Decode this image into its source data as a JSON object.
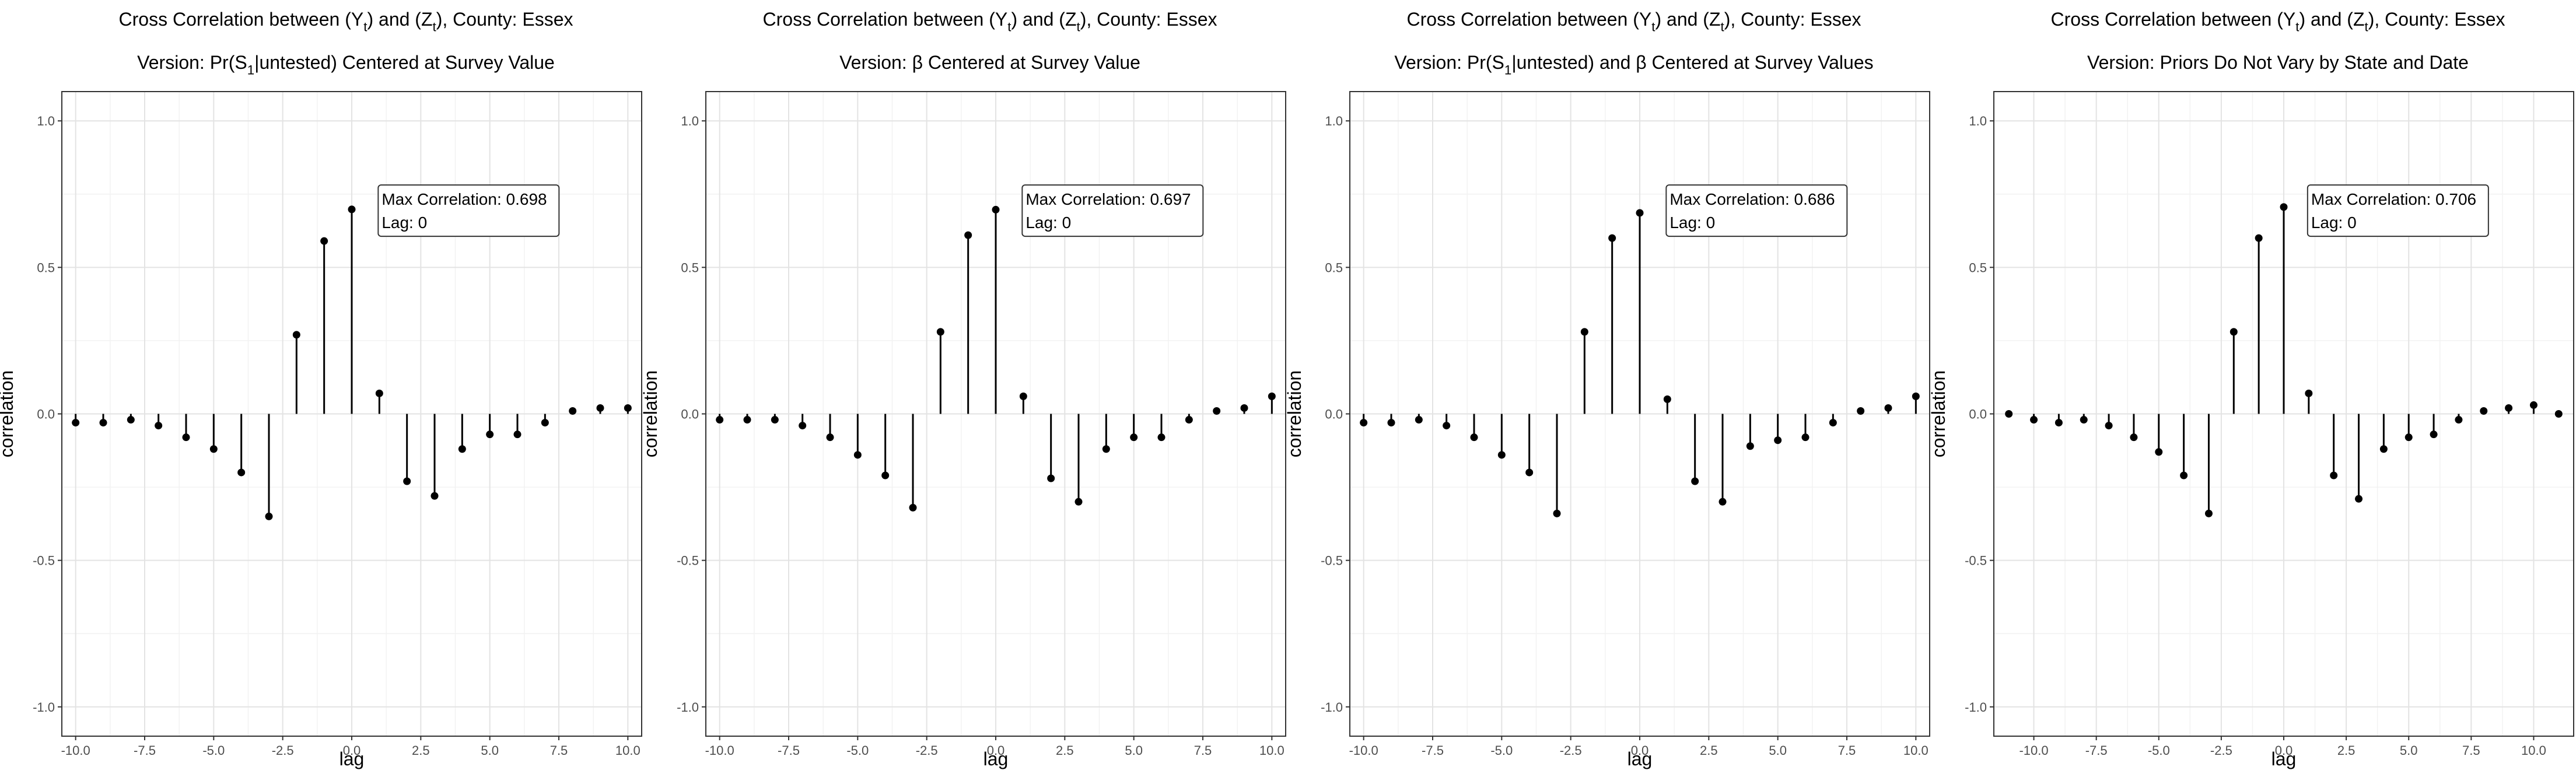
{
  "chart_data": [
    {
      "type": "stem",
      "title_parts": [
        "Cross Correlation between (Y",
        "t",
        ") and (Z",
        "t",
        "), County: Essex"
      ],
      "subtitle_parts": [
        "Version: Pr(S",
        "1",
        "|untested) Centered at Survey Value"
      ],
      "xlabel": "lag",
      "ylabel": "correlation",
      "xlim": [
        -10.5,
        10.5
      ],
      "ylim": [
        -1.1,
        1.1
      ],
      "x_ticks": [
        -10,
        -7.5,
        -5,
        -2.5,
        0,
        2.5,
        5,
        7.5,
        10
      ],
      "x_tick_labels": [
        "-10.0",
        "-7.5",
        "-5.0",
        "-2.5",
        "0.0",
        "2.5",
        "5.0",
        "7.5",
        "10.0"
      ],
      "y_ticks": [
        -1,
        -0.5,
        0,
        0.5,
        1
      ],
      "y_tick_labels": [
        "-1.0",
        "-0.5",
        "0.0",
        "0.5",
        "1.0"
      ],
      "grid": true,
      "x": [
        -10,
        -9,
        -8,
        -7,
        -6,
        -5,
        -4,
        -3,
        -2,
        -1,
        0,
        1,
        2,
        3,
        4,
        5,
        6,
        7,
        8,
        9,
        10
      ],
      "y": [
        -0.03,
        -0.03,
        -0.02,
        -0.04,
        -0.08,
        -0.12,
        -0.2,
        -0.35,
        0.27,
        0.59,
        0.698,
        0.07,
        -0.23,
        -0.28,
        -0.12,
        -0.07,
        -0.07,
        -0.03,
        0.01,
        0.02,
        0.02
      ],
      "annotation": {
        "lines": [
          "Max Correlation: 0.698",
          "Lag: 0"
        ],
        "x": 1,
        "y": 0.63
      }
    },
    {
      "type": "stem",
      "title_parts": [
        "Cross Correlation between (Y",
        "t",
        ") and (Z",
        "t",
        "), County: Essex"
      ],
      "subtitle_parts": [
        "Version: β Centered at Survey Value"
      ],
      "xlabel": "lag",
      "ylabel": "correlation",
      "xlim": [
        -10.5,
        10.5
      ],
      "ylim": [
        -1.1,
        1.1
      ],
      "x_ticks": [
        -10,
        -7.5,
        -5,
        -2.5,
        0,
        2.5,
        5,
        7.5,
        10
      ],
      "x_tick_labels": [
        "-10.0",
        "-7.5",
        "-5.0",
        "-2.5",
        "0.0",
        "2.5",
        "5.0",
        "7.5",
        "10.0"
      ],
      "y_ticks": [
        -1,
        -0.5,
        0,
        0.5,
        1
      ],
      "y_tick_labels": [
        "-1.0",
        "-0.5",
        "0.0",
        "0.5",
        "1.0"
      ],
      "grid": true,
      "x": [
        -10,
        -9,
        -8,
        -7,
        -6,
        -5,
        -4,
        -3,
        -2,
        -1,
        0,
        1,
        2,
        3,
        4,
        5,
        6,
        7,
        8,
        9,
        10
      ],
      "y": [
        -0.02,
        -0.02,
        -0.02,
        -0.04,
        -0.08,
        -0.14,
        -0.21,
        -0.32,
        0.28,
        0.61,
        0.697,
        0.06,
        -0.22,
        -0.3,
        -0.12,
        -0.08,
        -0.08,
        -0.02,
        0.01,
        0.02,
        0.06
      ],
      "annotation": {
        "lines": [
          "Max Correlation: 0.697",
          "Lag: 0"
        ],
        "x": 1,
        "y": 0.63
      }
    },
    {
      "type": "stem",
      "title_parts": [
        "Cross Correlation between (Y",
        "t",
        ") and (Z",
        "t",
        "), County: Essex"
      ],
      "subtitle_parts": [
        "Version: Pr(S",
        "1",
        "|untested) and β Centered at Survey Values"
      ],
      "xlabel": "lag",
      "ylabel": "correlation",
      "xlim": [
        -10.5,
        10.5
      ],
      "ylim": [
        -1.1,
        1.1
      ],
      "x_ticks": [
        -10,
        -7.5,
        -5,
        -2.5,
        0,
        2.5,
        5,
        7.5,
        10
      ],
      "x_tick_labels": [
        "-10.0",
        "-7.5",
        "-5.0",
        "-2.5",
        "0.0",
        "2.5",
        "5.0",
        "7.5",
        "10.0"
      ],
      "y_ticks": [
        -1,
        -0.5,
        0,
        0.5,
        1
      ],
      "y_tick_labels": [
        "-1.0",
        "-0.5",
        "0.0",
        "0.5",
        "1.0"
      ],
      "grid": true,
      "x": [
        -10,
        -9,
        -8,
        -7,
        -6,
        -5,
        -4,
        -3,
        -2,
        -1,
        0,
        1,
        2,
        3,
        4,
        5,
        6,
        7,
        8,
        9,
        10
      ],
      "y": [
        -0.03,
        -0.03,
        -0.02,
        -0.04,
        -0.08,
        -0.14,
        -0.2,
        -0.34,
        0.28,
        0.6,
        0.686,
        0.05,
        -0.23,
        -0.3,
        -0.11,
        -0.09,
        -0.08,
        -0.03,
        0.01,
        0.02,
        0.06
      ],
      "annotation": {
        "lines": [
          "Max Correlation: 0.686",
          "Lag: 0"
        ],
        "x": 1,
        "y": 0.63
      }
    },
    {
      "type": "stem",
      "title_parts": [
        "Cross Correlation between (Y",
        "t",
        ") and (Z",
        "t",
        "), County: Essex"
      ],
      "subtitle_parts": [
        "Version: Priors Do Not Vary by State and Date"
      ],
      "xlabel": "lag",
      "ylabel": "correlation",
      "xlim": [
        -11.6,
        11.6
      ],
      "ylim": [
        -1.1,
        1.1
      ],
      "x_ticks": [
        -10,
        -7.5,
        -5,
        -2.5,
        0,
        2.5,
        5,
        7.5,
        10
      ],
      "x_tick_labels": [
        "-10.0",
        "-7.5",
        "-5.0",
        "-2.5",
        "0.0",
        "2.5",
        "5.0",
        "7.5",
        "10.0"
      ],
      "y_ticks": [
        -1,
        -0.5,
        0,
        0.5,
        1
      ],
      "y_tick_labels": [
        "-1.0",
        "-0.5",
        "0.0",
        "0.5",
        "1.0"
      ],
      "grid": true,
      "x": [
        -11,
        -10,
        -9,
        -8,
        -7,
        -6,
        -5,
        -4,
        -3,
        -2,
        -1,
        0,
        1,
        2,
        3,
        4,
        5,
        6,
        7,
        8,
        9,
        10,
        11
      ],
      "y": [
        0.0,
        -0.02,
        -0.03,
        -0.02,
        -0.04,
        -0.08,
        -0.13,
        -0.21,
        -0.34,
        0.28,
        0.6,
        0.706,
        0.07,
        -0.21,
        -0.29,
        -0.12,
        -0.08,
        -0.07,
        -0.02,
        0.01,
        0.02,
        0.03,
        0.0
      ],
      "annotation": {
        "lines": [
          "Max Correlation: 0.706",
          "Lag: 0"
        ],
        "x": 1,
        "y": 0.63
      }
    }
  ]
}
